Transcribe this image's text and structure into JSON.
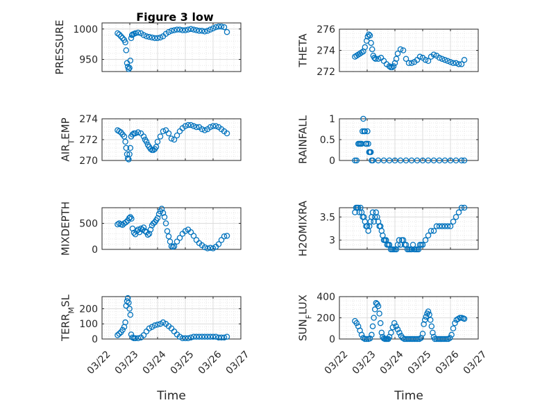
{
  "figure_title": "Figure 3 low",
  "colors": {
    "marker": "#0072BD",
    "axis": "#262626",
    "grid": "#dcdcdc"
  },
  "chart_data": [
    {
      "type": "scatter",
      "title": "Figure 3 low",
      "ylabel": "PRESSURE",
      "xlabel": "",
      "xlim": [
        "03/22",
        "03/27"
      ],
      "ylim": [
        930,
        1010
      ],
      "yticks": [
        "950",
        "1000"
      ],
      "grid": true,
      "series": [
        {
          "x": [
            22.56,
            22.62,
            22.68,
            22.74,
            22.8,
            22.84,
            22.87,
            22.9,
            22.93,
            22.96,
            22.99,
            23.02,
            23.05,
            23.08,
            23.1,
            23.15,
            23.2,
            23.3,
            23.4,
            23.5,
            23.6,
            23.7,
            23.8,
            23.9,
            24.0,
            24.1,
            24.2,
            24.3,
            24.4,
            24.5,
            24.6,
            24.7,
            24.8,
            24.9,
            25.0,
            25.1,
            25.2,
            25.3,
            25.4,
            25.5,
            25.6,
            25.7,
            25.8,
            25.9,
            26.0,
            26.1,
            26.2,
            26.3,
            26.4,
            26.5
          ],
          "y": [
            993,
            991,
            988,
            985,
            982,
            978,
            965,
            944,
            938,
            934,
            936,
            948,
            985,
            990,
            991,
            992,
            993,
            994,
            993,
            990,
            988,
            987,
            986,
            985,
            985,
            986,
            988,
            992,
            995,
            997,
            998,
            999,
            999,
            998,
            998,
            999,
            1000,
            999,
            998,
            997,
            997,
            996,
            997,
            999,
            1001,
            1003,
            1004,
            1004,
            1003,
            995
          ]
        }
      ]
    },
    {
      "type": "scatter",
      "ylabel": "THETA",
      "xlabel": "",
      "xlim": [
        "03/22",
        "03/27"
      ],
      "ylim": [
        272,
        276
      ],
      "yticks": [
        "272",
        "274",
        "276"
      ],
      "grid": true,
      "series": [
        {
          "x": [
            22.56,
            22.62,
            22.68,
            22.74,
            22.8,
            22.86,
            22.92,
            22.98,
            23.02,
            23.06,
            23.1,
            23.14,
            23.18,
            23.22,
            23.26,
            23.3,
            23.4,
            23.5,
            23.6,
            23.7,
            23.8,
            23.85,
            23.9,
            23.95,
            24.0,
            24.05,
            24.1,
            24.2,
            24.3,
            24.4,
            24.5,
            24.6,
            24.7,
            24.8,
            24.9,
            25.0,
            25.1,
            25.2,
            25.3,
            25.4,
            25.5,
            25.6,
            25.7,
            25.8,
            25.9,
            26.0,
            26.1,
            26.2,
            26.3,
            26.4,
            26.5
          ],
          "y": [
            273.4,
            273.5,
            273.6,
            273.7,
            273.8,
            273.9,
            274.3,
            274.9,
            275.3,
            275.5,
            275.4,
            274.7,
            274.1,
            273.5,
            273.3,
            273.2,
            273.2,
            273.3,
            273.0,
            272.7,
            272.5,
            272.4,
            272.4,
            272.5,
            272.8,
            273.2,
            273.7,
            274.1,
            274.0,
            273.2,
            272.8,
            272.8,
            272.9,
            273.1,
            273.4,
            273.3,
            273.1,
            273.0,
            273.4,
            273.6,
            273.5,
            273.3,
            273.2,
            273.1,
            273.0,
            272.9,
            272.8,
            272.8,
            272.7,
            272.7,
            273.1
          ]
        }
      ]
    },
    {
      "type": "scatter",
      "ylabel": "AIR_TEMP",
      "xlabel": "",
      "xlim": [
        "03/22",
        "03/27"
      ],
      "ylim": [
        270,
        274
      ],
      "yticks": [
        "270",
        "272",
        "274"
      ],
      "grid": true,
      "series": [
        {
          "x": [
            22.56,
            22.62,
            22.68,
            22.74,
            22.8,
            22.84,
            22.87,
            22.9,
            22.93,
            22.96,
            22.99,
            23.02,
            23.05,
            23.1,
            23.15,
            23.2,
            23.3,
            23.4,
            23.5,
            23.55,
            23.6,
            23.65,
            23.7,
            23.75,
            23.8,
            23.85,
            23.9,
            23.95,
            24.0,
            24.1,
            24.2,
            24.3,
            24.4,
            24.5,
            24.6,
            24.7,
            24.8,
            24.9,
            25.0,
            25.1,
            25.2,
            25.3,
            25.4,
            25.5,
            25.6,
            25.7,
            25.8,
            25.9,
            26.0,
            26.1,
            26.2,
            26.3,
            26.4,
            26.5
          ],
          "y": [
            272.9,
            272.8,
            272.7,
            272.5,
            272.3,
            271.8,
            271.2,
            270.6,
            270.2,
            270.1,
            270.6,
            271.2,
            272.3,
            272.5,
            272.6,
            272.6,
            272.7,
            272.6,
            272.3,
            272.0,
            271.8,
            271.5,
            271.3,
            271.1,
            271.0,
            271.0,
            271.1,
            271.3,
            271.8,
            272.3,
            272.8,
            272.9,
            272.6,
            272.1,
            272.0,
            272.4,
            272.8,
            273.1,
            273.3,
            273.4,
            273.4,
            273.3,
            273.2,
            273.2,
            273.0,
            272.9,
            273.0,
            273.2,
            273.3,
            273.3,
            273.2,
            273.0,
            272.8,
            272.6
          ]
        }
      ]
    },
    {
      "type": "scatter",
      "ylabel": "RAINFALL",
      "xlabel": "",
      "xlim": [
        "03/22",
        "03/27"
      ],
      "ylim": [
        0,
        1
      ],
      "yticks": [
        "0",
        "0.5",
        "1"
      ],
      "grid": true,
      "series": [
        {
          "x": [
            22.56,
            22.62,
            22.68,
            22.72,
            22.76,
            22.8,
            22.83,
            22.86,
            22.89,
            22.92,
            22.95,
            22.98,
            23.01,
            23.04,
            23.07,
            23.1,
            23.13,
            23.16,
            23.2,
            23.4,
            23.6,
            23.8,
            24.0,
            24.2,
            24.4,
            24.6,
            24.8,
            25.0,
            25.2,
            25.4,
            25.6,
            25.8,
            26.0,
            26.2,
            26.4,
            26.5
          ],
          "y": [
            0,
            0,
            0.4,
            0.4,
            0.4,
            0.4,
            0.7,
            1.0,
            0.7,
            0.7,
            0.4,
            0.4,
            0.7,
            0.4,
            0.2,
            0.2,
            0.2,
            0,
            0,
            0,
            0,
            0,
            0,
            0,
            0,
            0,
            0,
            0,
            0,
            0,
            0,
            0,
            0,
            0,
            0,
            0
          ]
        }
      ]
    },
    {
      "type": "scatter",
      "ylabel": "MIXDEPTH",
      "xlabel": "",
      "xlim": [
        "03/22",
        "03/27"
      ],
      "ylim": [
        0,
        800
      ],
      "yticks": [
        "0",
        "500"
      ],
      "grid": true,
      "series": [
        {
          "x": [
            22.56,
            22.62,
            22.68,
            22.74,
            22.8,
            22.86,
            22.92,
            22.98,
            23.02,
            23.06,
            23.1,
            23.15,
            23.2,
            23.25,
            23.3,
            23.35,
            23.4,
            23.45,
            23.5,
            23.55,
            23.6,
            23.65,
            23.7,
            23.75,
            23.8,
            23.85,
            23.9,
            23.95,
            24.0,
            24.05,
            24.1,
            24.15,
            24.2,
            24.25,
            24.3,
            24.35,
            24.4,
            24.45,
            24.5,
            24.55,
            24.6,
            24.7,
            24.8,
            24.9,
            25.0,
            25.1,
            25.2,
            25.3,
            25.4,
            25.5,
            25.6,
            25.7,
            25.8,
            25.9,
            26.0,
            26.1,
            26.2,
            26.3,
            26.4,
            26.5
          ],
          "y": [
            480,
            500,
            480,
            470,
            500,
            520,
            550,
            600,
            620,
            590,
            400,
            320,
            290,
            350,
            380,
            330,
            400,
            380,
            420,
            350,
            330,
            280,
            300,
            380,
            460,
            500,
            520,
            560,
            600,
            680,
            730,
            780,
            700,
            620,
            500,
            350,
            250,
            150,
            60,
            50,
            60,
            150,
            220,
            300,
            350,
            380,
            330,
            260,
            180,
            120,
            80,
            40,
            20,
            30,
            20,
            50,
            100,
            180,
            250,
            260
          ]
        }
      ]
    },
    {
      "type": "scatter",
      "ylabel": "H2OMIXRA",
      "xlabel": "",
      "xlim": [
        "03/22",
        "03/27"
      ],
      "ylim": [
        2.8,
        3.7
      ],
      "yticks": [
        "3",
        "3.5"
      ],
      "grid": true,
      "series": [
        {
          "x": [
            22.56,
            22.6,
            22.64,
            22.68,
            22.72,
            22.76,
            22.8,
            22.84,
            22.88,
            22.92,
            22.96,
            23.0,
            23.04,
            23.08,
            23.12,
            23.16,
            23.2,
            23.24,
            23.28,
            23.32,
            23.36,
            23.4,
            23.44,
            23.48,
            23.52,
            23.56,
            23.6,
            23.64,
            23.68,
            23.72,
            23.76,
            23.8,
            23.85,
            23.9,
            23.95,
            24.0,
            24.05,
            24.1,
            24.15,
            24.2,
            24.25,
            24.3,
            24.35,
            24.4,
            24.45,
            24.5,
            24.55,
            24.6,
            24.65,
            24.7,
            24.75,
            24.8,
            24.85,
            24.9,
            24.95,
            25.0,
            25.1,
            25.2,
            25.3,
            25.4,
            25.5,
            25.6,
            25.7,
            25.8,
            25.9,
            26.0,
            26.1,
            26.2,
            26.3,
            26.4,
            26.5
          ],
          "y": [
            3.6,
            3.7,
            3.7,
            3.7,
            3.6,
            3.7,
            3.6,
            3.5,
            3.5,
            3.4,
            3.3,
            3.3,
            3.2,
            3.3,
            3.4,
            3.5,
            3.6,
            3.4,
            3.5,
            3.6,
            3.5,
            3.4,
            3.3,
            3.3,
            3.2,
            3.1,
            3.0,
            3.0,
            3.0,
            2.9,
            2.9,
            2.9,
            2.8,
            2.8,
            2.8,
            2.8,
            2.8,
            2.9,
            3.0,
            2.9,
            3.0,
            3.0,
            2.9,
            2.9,
            2.8,
            2.8,
            2.8,
            2.8,
            2.9,
            2.8,
            2.8,
            2.8,
            2.8,
            2.9,
            2.9,
            2.9,
            3.0,
            3.1,
            3.2,
            3.2,
            3.3,
            3.3,
            3.3,
            3.3,
            3.3,
            3.3,
            3.4,
            3.5,
            3.6,
            3.7,
            3.7
          ]
        }
      ]
    },
    {
      "type": "scatter",
      "ylabel": "TERR_MSL",
      "xlabel": "Time",
      "xlim": [
        "03/22",
        "03/27"
      ],
      "ylim": [
        0,
        280
      ],
      "yticks": [
        "0",
        "100",
        "200"
      ],
      "grid": true,
      "xticks": [
        "03/22",
        "03/23",
        "03/24",
        "03/25",
        "03/26",
        "03/27"
      ],
      "series": [
        {
          "x": [
            22.56,
            22.62,
            22.68,
            22.74,
            22.8,
            22.84,
            22.87,
            22.9,
            22.93,
            22.96,
            22.99,
            23.02,
            23.05,
            23.1,
            23.15,
            23.2,
            23.3,
            23.4,
            23.5,
            23.6,
            23.7,
            23.8,
            23.9,
            24.0,
            24.1,
            24.2,
            24.3,
            24.4,
            24.5,
            24.6,
            24.7,
            24.8,
            24.9,
            25.0,
            25.1,
            25.2,
            25.3,
            25.4,
            25.5,
            25.6,
            25.7,
            25.8,
            25.9,
            26.0,
            26.1,
            26.2,
            26.3,
            26.4,
            26.5
          ],
          "y": [
            25,
            35,
            45,
            60,
            80,
            110,
            220,
            250,
            270,
            240,
            200,
            160,
            30,
            10,
            5,
            5,
            5,
            10,
            25,
            50,
            70,
            80,
            90,
            95,
            100,
            110,
            100,
            85,
            70,
            50,
            30,
            15,
            5,
            5,
            5,
            10,
            15,
            15,
            15,
            15,
            15,
            15,
            15,
            15,
            15,
            10,
            10,
            10,
            15
          ]
        }
      ]
    },
    {
      "type": "scatter",
      "ylabel": "SUN_FLUX",
      "xlabel": "Time",
      "xlim": [
        "03/22",
        "03/27"
      ],
      "ylim": [
        0,
        400
      ],
      "yticks": [
        "0",
        "200",
        "400"
      ],
      "grid": true,
      "xticks": [
        "03/22",
        "03/23",
        "03/24",
        "03/25",
        "03/26",
        "03/27"
      ],
      "series": [
        {
          "x": [
            22.56,
            22.62,
            22.68,
            22.74,
            22.8,
            22.86,
            22.92,
            22.98,
            23.04,
            23.1,
            23.16,
            23.2,
            23.24,
            23.28,
            23.32,
            23.36,
            23.4,
            23.44,
            23.48,
            23.52,
            23.56,
            23.6,
            23.64,
            23.68,
            23.72,
            23.76,
            23.8,
            23.86,
            23.92,
            23.98,
            24.04,
            24.1,
            24.16,
            24.22,
            24.28,
            24.34,
            24.4,
            24.46,
            24.52,
            24.58,
            24.64,
            24.7,
            24.76,
            24.82,
            24.88,
            24.94,
            25.0,
            25.04,
            25.08,
            25.12,
            25.16,
            25.2,
            25.24,
            25.28,
            25.32,
            25.36,
            25.4,
            25.44,
            25.5,
            25.56,
            25.62,
            25.68,
            25.74,
            25.8,
            25.86,
            25.92,
            25.98,
            26.04,
            26.1,
            26.16,
            26.22,
            26.28,
            26.34,
            26.4,
            26.46,
            26.5
          ],
          "y": [
            170,
            150,
            120,
            80,
            40,
            10,
            0,
            0,
            0,
            5,
            40,
            120,
            200,
            280,
            340,
            330,
            310,
            240,
            150,
            60,
            20,
            5,
            0,
            0,
            0,
            0,
            20,
            60,
            110,
            150,
            120,
            90,
            60,
            30,
            10,
            0,
            0,
            0,
            0,
            0,
            0,
            0,
            0,
            0,
            0,
            10,
            50,
            140,
            180,
            210,
            240,
            260,
            230,
            180,
            120,
            60,
            20,
            0,
            0,
            0,
            0,
            0,
            0,
            0,
            0,
            0,
            10,
            40,
            100,
            150,
            180,
            190,
            200,
            200,
            195,
            190
          ]
        }
      ]
    }
  ]
}
